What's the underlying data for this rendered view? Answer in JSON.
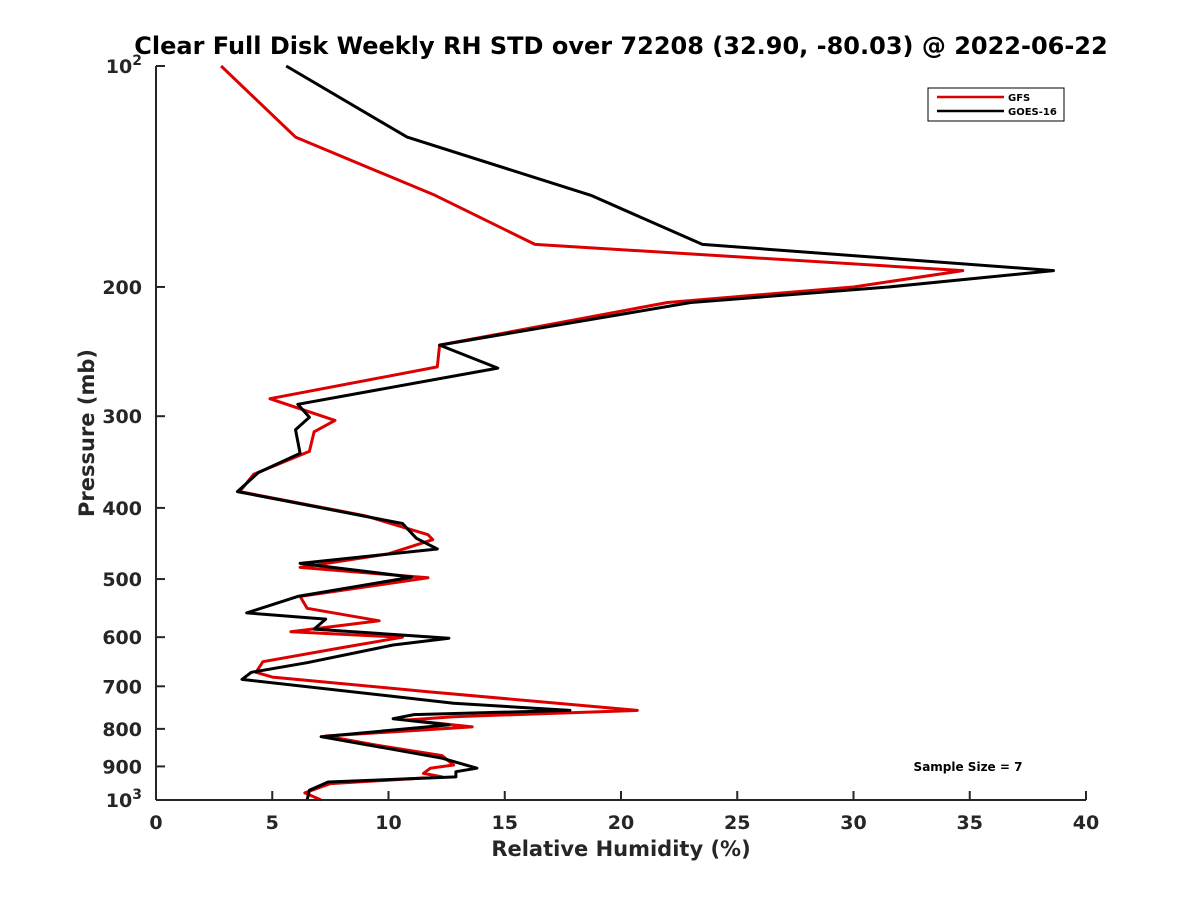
{
  "chart_data": {
    "type": "line",
    "title": "Clear Full Disk Weekly RH STD over 72208 (32.90, -80.03) @ 2022-06-22",
    "xlabel": "Relative Humidity (%)",
    "ylabel": "Pressure (mb)",
    "xlim": [
      0,
      40
    ],
    "ylim": [
      100,
      1000
    ],
    "yscale": "log",
    "y_reversed": true,
    "x_ticks": [
      "0",
      "5",
      "10",
      "15",
      "20",
      "25",
      "30",
      "35",
      "40"
    ],
    "y_ticks": [
      {
        "value": 100,
        "base": "10",
        "exp": "2"
      },
      {
        "value": 200,
        "label": "200"
      },
      {
        "value": 300,
        "label": "300"
      },
      {
        "value": 400,
        "label": "400"
      },
      {
        "value": 500,
        "label": "500"
      },
      {
        "value": 600,
        "label": "600"
      },
      {
        "value": 700,
        "label": "700"
      },
      {
        "value": 800,
        "label": "800"
      },
      {
        "value": 900,
        "label": "900"
      },
      {
        "value": 1000,
        "base": "10",
        "exp": "3"
      }
    ],
    "grid": false,
    "legend_position": "top-right",
    "annotation": "Sample Size = 7",
    "series": [
      {
        "name": "GFS",
        "color": "#dd0000",
        "points": [
          [
            2.8,
            100
          ],
          [
            6.0,
            125
          ],
          [
            12.0,
            150
          ],
          [
            16.3,
            175
          ],
          [
            34.7,
            190
          ],
          [
            30.0,
            200
          ],
          [
            22.0,
            210
          ],
          [
            12.2,
            240
          ],
          [
            12.1,
            257
          ],
          [
            4.9,
            284
          ],
          [
            7.7,
            304
          ],
          [
            6.8,
            315
          ],
          [
            6.6,
            335
          ],
          [
            4.2,
            360
          ],
          [
            3.6,
            380
          ],
          [
            9.0,
            410
          ],
          [
            11.7,
            435
          ],
          [
            11.9,
            442
          ],
          [
            10.0,
            462
          ],
          [
            6.2,
            482
          ],
          [
            11.7,
            498
          ],
          [
            6.2,
            528
          ],
          [
            6.5,
            548
          ],
          [
            9.6,
            570
          ],
          [
            5.8,
            590
          ],
          [
            10.6,
            600
          ],
          [
            8.0,
            620
          ],
          [
            4.6,
            648
          ],
          [
            4.3,
            670
          ],
          [
            5.0,
            680
          ],
          [
            11.7,
            712
          ],
          [
            20.7,
            755
          ],
          [
            12.8,
            770
          ],
          [
            10.8,
            778
          ],
          [
            13.6,
            795
          ],
          [
            7.3,
            818
          ],
          [
            9.5,
            842
          ],
          [
            12.3,
            870
          ],
          [
            12.8,
            896
          ],
          [
            11.8,
            905
          ],
          [
            11.5,
            920
          ],
          [
            12.3,
            930
          ],
          [
            7.5,
            950
          ],
          [
            6.4,
            978
          ],
          [
            7.1,
            1000
          ]
        ]
      },
      {
        "name": "GOES-16",
        "color": "#000000",
        "points": [
          [
            5.6,
            100
          ],
          [
            10.8,
            125
          ],
          [
            18.7,
            150
          ],
          [
            23.5,
            175
          ],
          [
            38.6,
            190
          ],
          [
            31.5,
            200
          ],
          [
            23.0,
            210
          ],
          [
            12.2,
            240
          ],
          [
            14.7,
            258
          ],
          [
            6.1,
            289
          ],
          [
            6.6,
            301
          ],
          [
            6.0,
            313
          ],
          [
            6.2,
            337
          ],
          [
            4.4,
            358
          ],
          [
            3.5,
            380
          ],
          [
            10.6,
            420
          ],
          [
            11.2,
            440
          ],
          [
            12.1,
            455
          ],
          [
            6.2,
            476
          ],
          [
            11.0,
            497
          ],
          [
            6.1,
            528
          ],
          [
            3.9,
            556
          ],
          [
            7.3,
            567
          ],
          [
            6.8,
            585
          ],
          [
            12.6,
            602
          ],
          [
            10.2,
            615
          ],
          [
            6.5,
            650
          ],
          [
            4.1,
            670
          ],
          [
            3.7,
            685
          ],
          [
            12.8,
            738
          ],
          [
            17.8,
            755
          ],
          [
            11.1,
            765
          ],
          [
            10.2,
            775
          ],
          [
            12.6,
            790
          ],
          [
            7.1,
            820
          ],
          [
            9.9,
            850
          ],
          [
            12.3,
            877
          ],
          [
            13.8,
            905
          ],
          [
            12.9,
            915
          ],
          [
            12.9,
            930
          ],
          [
            7.4,
            945
          ],
          [
            6.6,
            970
          ],
          [
            6.5,
            1000
          ]
        ]
      }
    ]
  }
}
